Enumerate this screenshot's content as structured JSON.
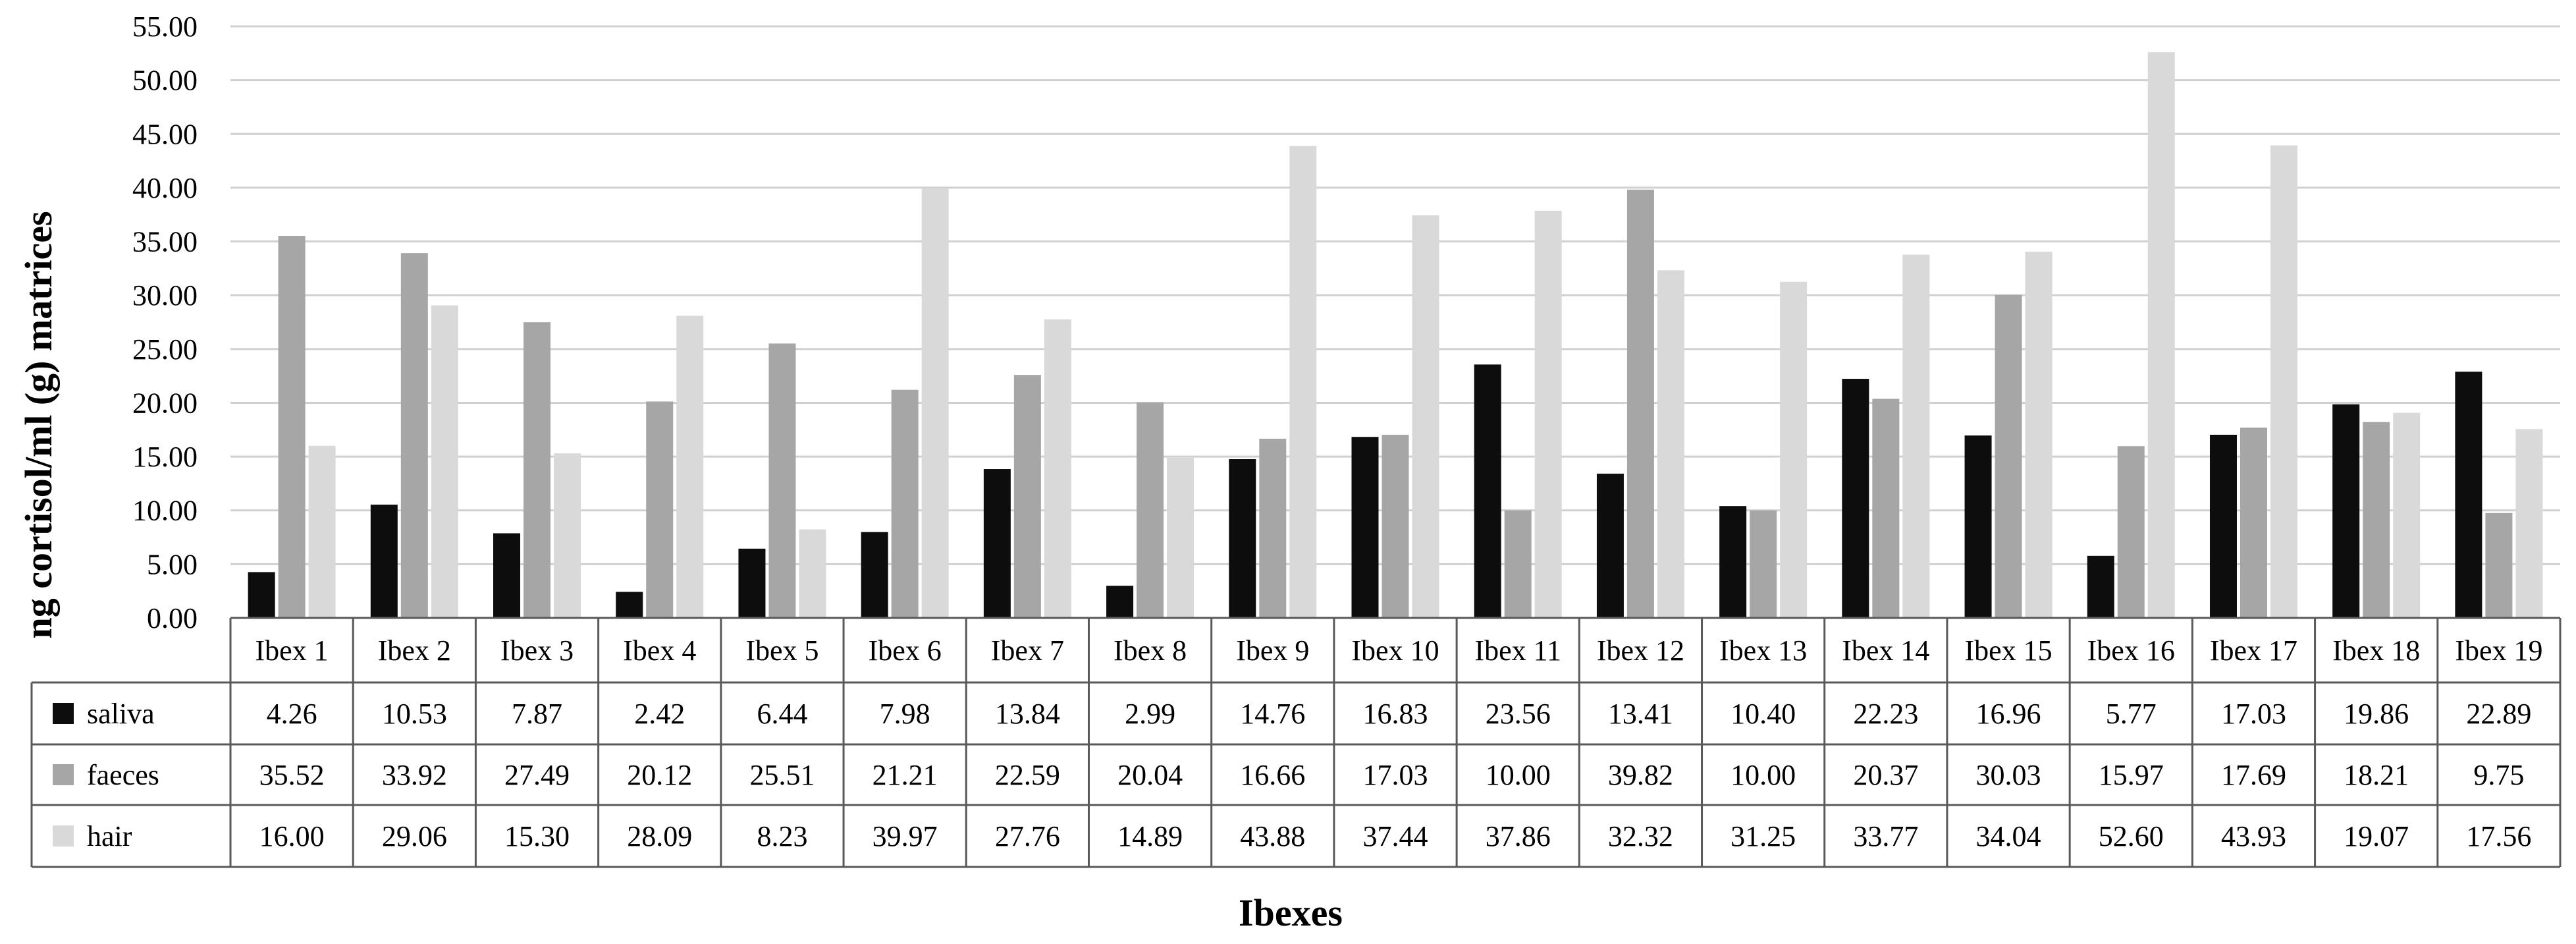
{
  "chart_data": {
    "type": "bar",
    "ylabel": "ng cortisol/ml (g) matrices",
    "xlabel": "Ibexes",
    "ylim": [
      0,
      55
    ],
    "y_ticks": [
      "0.00",
      "5.00",
      "10.00",
      "15.00",
      "20.00",
      "25.00",
      "30.00",
      "35.00",
      "40.00",
      "45.00",
      "50.00",
      "55.00"
    ],
    "grid": true,
    "legend_placement": "data table, left",
    "categories": [
      "Ibex 1",
      "Ibex 2",
      "Ibex 3",
      "Ibex 4",
      "Ibex 5",
      "Ibex 6",
      "Ibex 7",
      "Ibex 8",
      "Ibex 9",
      "Ibex 10",
      "Ibex 11",
      "Ibex 12",
      "Ibex 13",
      "Ibex 14",
      "Ibex 15",
      "Ibex 16",
      "Ibex 17",
      "Ibex 18",
      "Ibex 19"
    ],
    "series": [
      {
        "name": "saliva",
        "color": "#0d0d0d",
        "labels": [
          "4.26",
          "10.53",
          "7.87",
          "2.42",
          "6.44",
          "7.98",
          "13.84",
          "2.99",
          "14.76",
          "16.83",
          "23.56",
          "13.41",
          "10.40",
          "22.23",
          "16.96",
          "5.77",
          "17.03",
          "19.86",
          "22.89"
        ],
        "values": [
          4.26,
          10.53,
          7.87,
          2.42,
          6.44,
          7.98,
          13.84,
          2.99,
          14.76,
          16.83,
          23.56,
          13.41,
          10.4,
          22.23,
          16.96,
          5.77,
          17.03,
          19.86,
          22.89
        ]
      },
      {
        "name": "faeces",
        "color": "#a6a6a6",
        "labels": [
          "35.52",
          "33.92",
          "27.49",
          "20.12",
          "25.51",
          "21.21",
          "22.59",
          "20.04",
          "16.66",
          "17.03",
          "10.00",
          "39.82",
          "10.00",
          "20.37",
          "30.03",
          "15.97",
          "17.69",
          "18.21",
          "9.75"
        ],
        "values": [
          35.52,
          33.92,
          27.49,
          20.12,
          25.51,
          21.21,
          22.59,
          20.04,
          16.66,
          17.03,
          10.0,
          39.82,
          10.0,
          20.37,
          30.03,
          15.97,
          17.69,
          18.21,
          9.75
        ]
      },
      {
        "name": "hair",
        "color": "#d9d9d9",
        "labels": [
          "16.00",
          "29.06",
          "15.30",
          "28.09",
          "8.23",
          "39.97",
          "27.76",
          "14.89",
          "43.88",
          "37.44",
          "37.86",
          "32.32",
          "31.25",
          "33.77",
          "34.04",
          "52.60",
          "43.93",
          "19.07",
          "17.56"
        ],
        "values": [
          16.0,
          29.06,
          15.3,
          28.09,
          8.23,
          39.97,
          27.76,
          14.89,
          43.88,
          37.44,
          37.86,
          32.32,
          31.25,
          33.77,
          34.04,
          52.6,
          43.93,
          19.07,
          17.56
        ]
      }
    ]
  }
}
